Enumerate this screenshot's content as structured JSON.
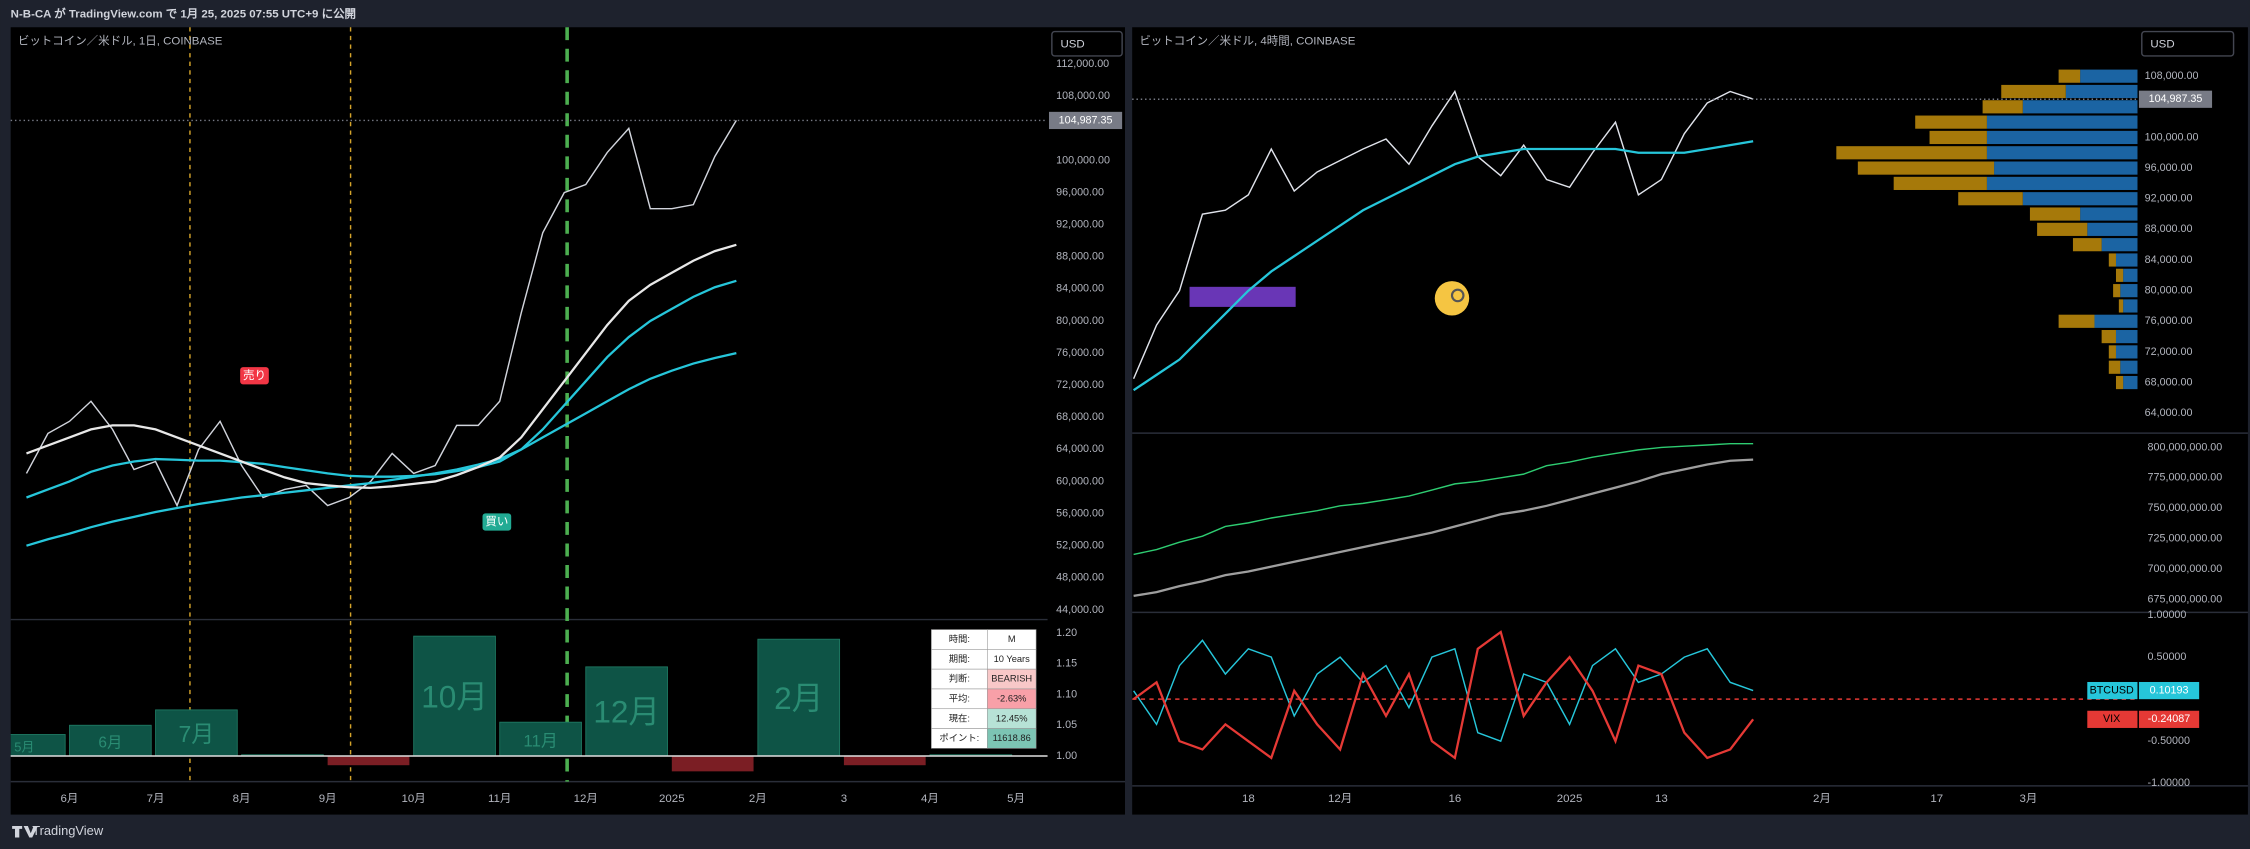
{
  "header": {
    "title": "N-B-CA が TradingView.com で 1月 25, 2025 07:55 UTC+9 に公開"
  },
  "footer": {
    "brand": "TradingView"
  },
  "seasonal_table": {
    "rows": [
      [
        "時間:",
        "M"
      ],
      [
        "期間:",
        "10 Years"
      ],
      [
        "判断:",
        "BEARISH"
      ],
      [
        "平均:",
        "-2.63%"
      ],
      [
        "現在:",
        "12.45%"
      ],
      [
        "ポイント:",
        "11618.86"
      ]
    ]
  },
  "signals": [
    "売り",
    "買い"
  ],
  "chart_data": [
    {
      "type": "line",
      "title": "ビットコイン／米ドル, 1日, COINBASE",
      "currency": "USD",
      "categories": [
        null,
        null,
        "6月",
        null,
        null,
        null,
        "7月",
        null,
        null,
        null,
        "8月",
        null,
        null,
        null,
        "9月",
        null,
        null,
        null,
        "10月",
        null,
        null,
        null,
        "11月",
        null,
        null,
        null,
        "12月",
        null,
        null,
        null,
        "2025",
        null,
        null,
        null,
        "2月",
        null,
        null,
        null,
        "3",
        null,
        null,
        null,
        "4月",
        null,
        null,
        null,
        "5月",
        null
      ],
      "series": [
        {
          "color": "#d1d4dc",
          "values": [
            61000,
            66000,
            67500,
            70000,
            66500,
            61500,
            62500,
            57000,
            64000,
            67500,
            62000,
            58000,
            59000,
            59500,
            57000,
            58000,
            60000,
            63500,
            61000,
            62000,
            67000,
            67000,
            70000,
            81000,
            91000,
            96000,
            97000,
            101000,
            104000,
            94000,
            94000,
            94500,
            100500,
            105000,
            null,
            null,
            null,
            null,
            null,
            null,
            null,
            null,
            null,
            null,
            null,
            null,
            null,
            null
          ]
        },
        {
          "color": "#26c6da",
          "values": [
            52000,
            52800,
            53500,
            54300,
            55000,
            55600,
            56200,
            56700,
            57200,
            57600,
            58000,
            58300,
            58600,
            58900,
            59200,
            59500,
            59800,
            60200,
            60600,
            61000,
            61500,
            62100,
            62800,
            64000,
            65500,
            67000,
            68500,
            70000,
            71500,
            72800,
            73800,
            74700,
            75400,
            76000,
            null,
            null,
            null,
            null,
            null,
            null,
            null,
            null,
            null,
            null,
            null,
            null,
            null,
            null
          ]
        },
        {
          "color": "#26c6da",
          "values": [
            58000,
            59000,
            60000,
            61200,
            62000,
            62500,
            62800,
            62700,
            62600,
            62600,
            62400,
            62200,
            61800,
            61400,
            61000,
            60700,
            60600,
            60600,
            60700,
            60900,
            61300,
            61800,
            62500,
            64000,
            66500,
            69500,
            72500,
            75500,
            78000,
            80000,
            81500,
            83000,
            84200,
            85000,
            null,
            null,
            null,
            null,
            null,
            null,
            null,
            null,
            null,
            null,
            null,
            null,
            null,
            null
          ]
        },
        {
          "color": "#e8e8e8",
          "values": [
            63500,
            64500,
            65500,
            66500,
            67000,
            67000,
            66500,
            65500,
            64500,
            63500,
            62500,
            61500,
            60500,
            59800,
            59500,
            59300,
            59200,
            59400,
            59700,
            60000,
            60800,
            61800,
            63000,
            65500,
            69000,
            72500,
            76000,
            79500,
            82500,
            84500,
            86000,
            87500,
            88700,
            89500,
            null,
            null,
            null,
            null,
            null,
            null,
            null,
            null,
            null,
            null,
            null,
            null,
            null,
            null
          ]
        }
      ],
      "ylim": [
        42800,
        116600
      ],
      "yticks": [
        {
          "value": 44000,
          "label": "44,000.00"
        },
        {
          "value": 48000,
          "label": "48,000.00"
        },
        {
          "value": 52000,
          "label": "52,000.00"
        },
        {
          "value": 56000,
          "label": "56,000.00"
        },
        {
          "value": 60000,
          "label": "60,000.00"
        },
        {
          "value": 64000,
          "label": "64,000.00"
        },
        {
          "value": 68000,
          "label": "68,000.00"
        },
        {
          "value": 72000,
          "label": "72,000.00"
        },
        {
          "value": 76000,
          "label": "76,000.00"
        },
        {
          "value": 80000,
          "label": "80,000.00"
        },
        {
          "value": 84000,
          "label": "84,000.00"
        },
        {
          "value": 88000,
          "label": "88,000.00"
        },
        {
          "value": 92000,
          "label": "92,000.00"
        },
        {
          "value": 96000,
          "label": "96,000.00"
        },
        {
          "value": 100000,
          "label": "100,000.00"
        },
        {
          "value": 108000,
          "label": "108,000.00"
        },
        {
          "value": 112000,
          "label": "112,000.00"
        }
      ],
      "last_price": {
        "value": 104987.35,
        "label": "104,987.35"
      }
    },
    {
      "type": "bar",
      "categories": [
        "5月",
        "6月",
        "7月",
        null,
        null,
        "10月",
        "11月",
        "12月",
        null,
        "2月",
        null,
        null
      ],
      "values": [
        1.035,
        1.05,
        1.075,
        1.002,
        0.985,
        1.195,
        1.055,
        1.145,
        0.975,
        1.19,
        0.985,
        1.002
      ],
      "color": "#0e5446",
      "negative_color": "#7b1e24",
      "baseline": 1,
      "ylim": [
        0.97,
        1.222
      ],
      "yticks": [
        {
          "value": 1,
          "label": "1.00"
        },
        {
          "value": 1.05,
          "label": "1.05"
        },
        {
          "value": 1.1,
          "label": "1.10"
        },
        {
          "value": 1.15,
          "label": "1.15"
        },
        {
          "value": 1.2,
          "label": "1.20"
        }
      ]
    },
    {
      "type": "line",
      "title": "ビットコイン／米ドル, 4時間, COINBASE",
      "currency": "USD",
      "categories": [
        null,
        null,
        null,
        null,
        null,
        "18",
        null,
        null,
        null,
        "12月",
        null,
        null,
        null,
        null,
        "16",
        null,
        null,
        null,
        null,
        "2025",
        null,
        null,
        null,
        "13",
        null,
        null,
        null,
        null,
        null,
        null,
        "2月",
        null,
        null,
        null,
        null,
        "17",
        null,
        null,
        null,
        "3月",
        null
      ],
      "series": [
        {
          "color": "#e0e3eb",
          "values": [
            68500,
            75500,
            80000,
            90000,
            90500,
            92500,
            98500,
            93000,
            95500,
            97000,
            98500,
            99800,
            96500,
            101500,
            106000,
            97500,
            95000,
            99000,
            94500,
            93500,
            98000,
            102000,
            92500,
            94500,
            100500,
            104500,
            106000,
            105000,
            null,
            null,
            null,
            null,
            null,
            null,
            null,
            null,
            null,
            null,
            null,
            null,
            null
          ]
        },
        {
          "color": "#26c6da",
          "values": [
            67000,
            69000,
            71000,
            74000,
            77000,
            80000,
            82500,
            84500,
            86500,
            88500,
            90500,
            92000,
            93500,
            95000,
            96500,
            97500,
            98000,
            98500,
            98500,
            98500,
            98500,
            98500,
            98000,
            98000,
            98000,
            98500,
            99000,
            99500,
            null,
            null,
            null,
            null,
            null,
            null,
            null,
            null,
            null,
            null,
            null,
            null,
            null
          ]
        }
      ],
      "ylim": [
        61400,
        114200
      ],
      "yticks": [
        {
          "value": 64000,
          "label": "64,000.00"
        },
        {
          "value": 68000,
          "label": "68,000.00"
        },
        {
          "value": 72000,
          "label": "72,000.00"
        },
        {
          "value": 76000,
          "label": "76,000.00"
        },
        {
          "value": 80000,
          "label": "80,000.00"
        },
        {
          "value": 84000,
          "label": "84,000.00"
        },
        {
          "value": 88000,
          "label": "88,000.00"
        },
        {
          "value": 92000,
          "label": "92,000.00"
        },
        {
          "value": 96000,
          "label": "96,000.00"
        },
        {
          "value": 100000,
          "label": "100,000.00"
        },
        {
          "value": 108000,
          "label": "108,000.00"
        }
      ],
      "last_price": {
        "value": 104987.35,
        "label": "104,987.35"
      }
    },
    {
      "type": "bar",
      "orientation": "horizontal",
      "stacked": true,
      "y": [
        108000,
        106000,
        104000,
        102000,
        100000,
        98000,
        96000,
        94000,
        92000,
        90000,
        88000,
        86000,
        84000,
        82000,
        80000,
        78000,
        76000,
        74000,
        72000,
        70000,
        68000
      ],
      "series": [
        {
          "color": "#1e6fb5",
          "values": [
            40,
            50,
            80,
            105,
            105,
            105,
            100,
            105,
            80,
            40,
            35,
            25,
            15,
            10,
            12,
            10,
            30,
            15,
            15,
            12,
            10
          ]
        },
        {
          "color": "#b8860b",
          "values": [
            15,
            45,
            28,
            50,
            40,
            105,
            95,
            65,
            45,
            35,
            35,
            20,
            5,
            5,
            5,
            3,
            25,
            10,
            5,
            8,
            5
          ]
        }
      ],
      "xlim": [
        0,
        220
      ]
    },
    {
      "type": "line",
      "series": [
        {
          "color": "#2ecc71",
          "values": [
            712000000,
            716000000,
            722000000,
            727000000,
            735000000,
            738000000,
            742000000,
            745000000,
            748000000,
            752000000,
            754000000,
            757000000,
            760000000,
            765000000,
            770000000,
            772000000,
            775000000,
            778000000,
            785000000,
            788000000,
            792000000,
            795000000,
            798000000,
            800000000,
            801000000,
            802000000,
            803000000,
            803000000,
            null,
            null,
            null,
            null,
            null,
            null,
            null,
            null,
            null,
            null,
            null,
            null,
            null
          ]
        },
        {
          "color": "#9e9e9e",
          "values": [
            678000000,
            681000000,
            686000000,
            690000000,
            695000000,
            698000000,
            702000000,
            706000000,
            710000000,
            714000000,
            718000000,
            722000000,
            726000000,
            730000000,
            735000000,
            740000000,
            745000000,
            748000000,
            752000000,
            757000000,
            762000000,
            767000000,
            772000000,
            778000000,
            782000000,
            786000000,
            789000000,
            790000000,
            null,
            null,
            null,
            null,
            null,
            null,
            null,
            null,
            null,
            null,
            null,
            null,
            null
          ]
        }
      ],
      "ylim": [
        664400000,
        810600000
      ],
      "yticks": [
        {
          "value": 675000000,
          "label": "675,000,000.00"
        },
        {
          "value": 700000000,
          "label": "700,000,000.00"
        },
        {
          "value": 725000000,
          "label": "725,000,000.00"
        },
        {
          "value": 750000000,
          "label": "750,000,000.00"
        },
        {
          "value": 775000000,
          "label": "775,000,000.00"
        },
        {
          "value": 800000000,
          "label": "800,000,000.00"
        }
      ]
    },
    {
      "type": "line",
      "series": [
        {
          "name": "BTCUSD",
          "color": "#26c6da",
          "values": [
            0.1,
            -0.3,
            0.4,
            0.7,
            0.3,
            0.6,
            0.5,
            -0.2,
            0.3,
            0.5,
            0.2,
            0.4,
            -0.1,
            0.5,
            0.6,
            -0.4,
            -0.5,
            0.3,
            0.2,
            -0.3,
            0.4,
            0.6,
            0.2,
            0.3,
            0.5,
            0.6,
            0.2,
            0.10193,
            null,
            null,
            null,
            null,
            null,
            null,
            null,
            null,
            null,
            null,
            null,
            null,
            null
          ]
        },
        {
          "name": "VIX",
          "color": "#e53935",
          "values": [
            0,
            0.2,
            -0.5,
            -0.6,
            -0.3,
            -0.5,
            -0.7,
            0.1,
            -0.3,
            -0.6,
            0.3,
            -0.2,
            0.3,
            -0.5,
            -0.7,
            0.6,
            0.8,
            -0.2,
            0.2,
            0.5,
            0.1,
            -0.5,
            0.4,
            0.3,
            -0.4,
            -0.7,
            -0.6,
            -0.24087,
            null,
            null,
            null,
            null,
            null,
            null,
            null,
            null,
            null,
            null,
            null,
            null,
            null
          ]
        }
      ],
      "ylim": [
        -1.034,
        1.017
      ],
      "yticks": [
        {
          "value": 1,
          "label": "1.00000"
        },
        {
          "value": 0.5,
          "label": "0.50000"
        },
        {
          "value": -0.5,
          "label": "-0.50000"
        },
        {
          "value": -1,
          "label": "-1.00000"
        }
      ]
    }
  ]
}
